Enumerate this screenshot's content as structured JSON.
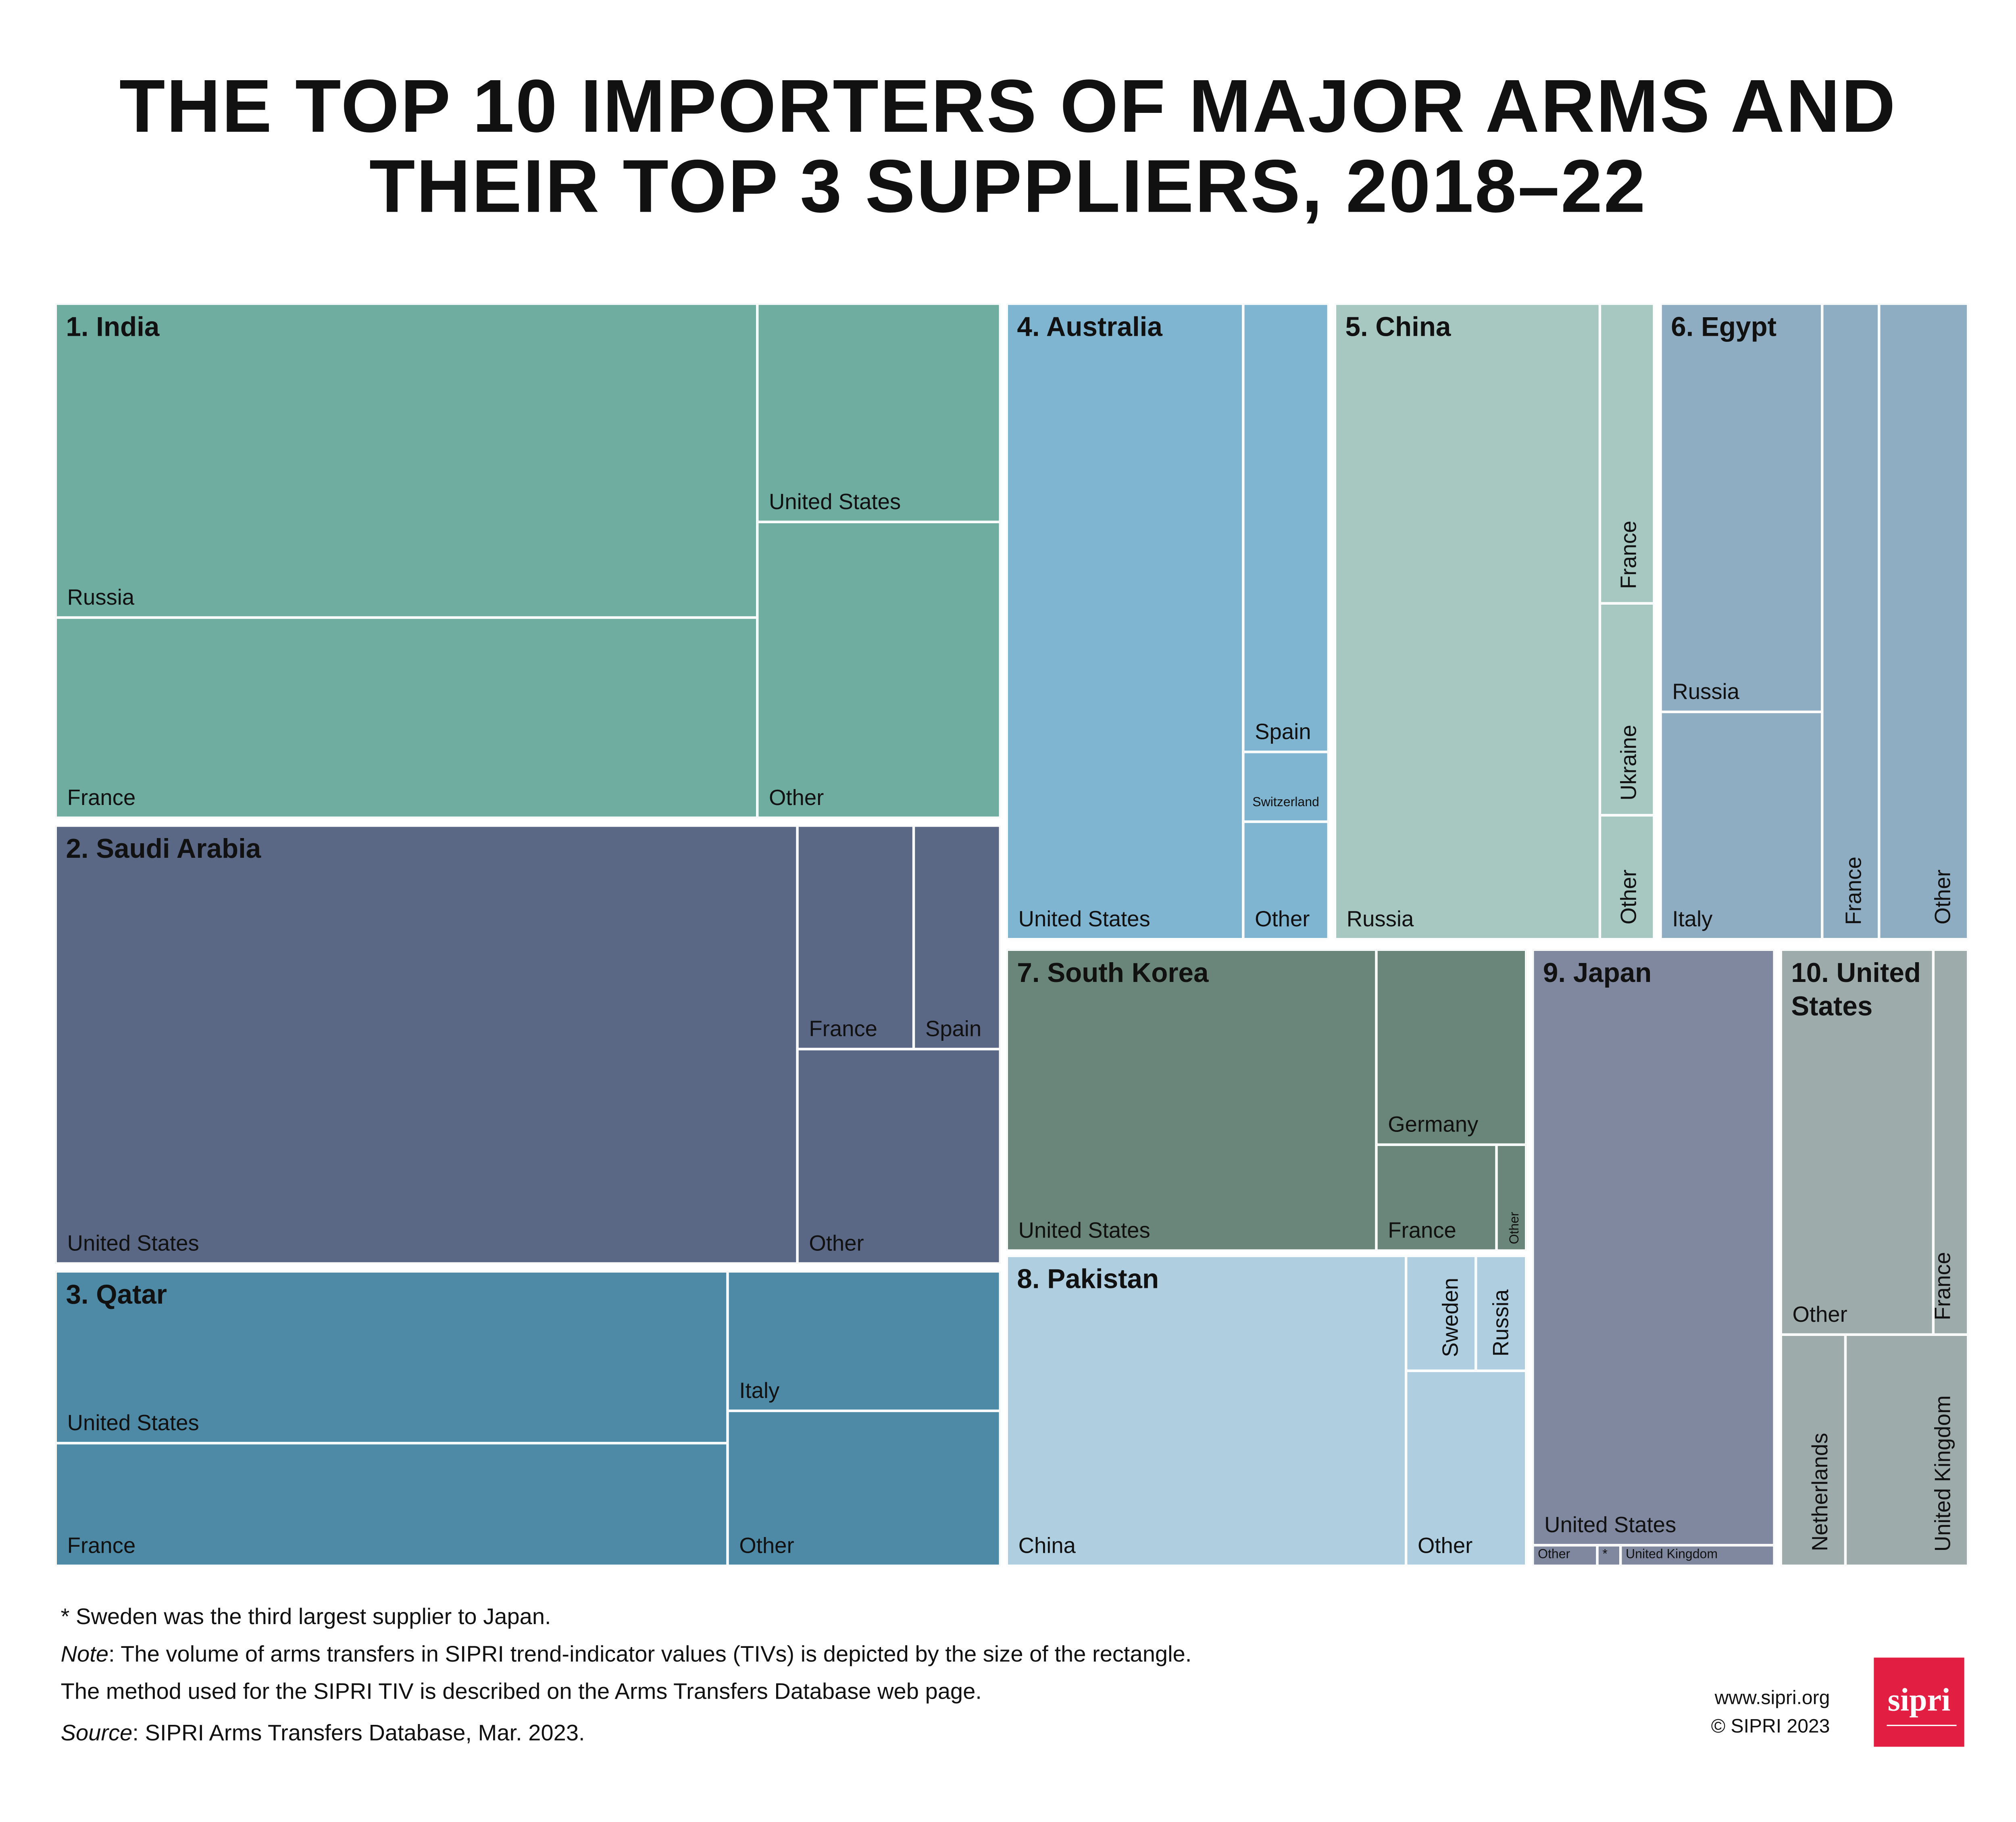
{
  "chart_data": {
    "type": "treemap",
    "title_line1": "THE TOP 10 IMPORTERS OF MAJOR ARMS AND",
    "title_line2": "THEIR TOP 3 SUPPLIERS, 2018–22",
    "countries": [
      {
        "label": "1. India",
        "color": "#6fada1",
        "suppliers": [
          "Russia",
          "France",
          "United States",
          "Other"
        ]
      },
      {
        "label": "2. Saudi Arabia",
        "color": "#5a6785",
        "suppliers": [
          "United States",
          "France",
          "Spain",
          "Other"
        ]
      },
      {
        "label": "3. Qatar",
        "color": "#4e8aa6",
        "suppliers": [
          "United States",
          "France",
          "Italy",
          "Other"
        ]
      },
      {
        "label": "4. Australia",
        "color": "#7fb5d1",
        "suppliers": [
          "United States",
          "Spain",
          "Switzerland",
          "Other"
        ]
      },
      {
        "label": "5. China",
        "color": "#a6c8c0",
        "suppliers": [
          "Russia",
          "France",
          "Ukraine",
          "Other"
        ]
      },
      {
        "label": "6. Egypt",
        "color": "#8fadc2",
        "suppliers": [
          "Russia",
          "Italy",
          "France",
          "Other"
        ]
      },
      {
        "label": "7. South Korea",
        "color": "#6a8579",
        "suppliers": [
          "United States",
          "Germany",
          "France",
          "Other"
        ]
      },
      {
        "label": "8. Pakistan",
        "color": "#afcfe1",
        "suppliers": [
          "China",
          "Sweden",
          "Russia",
          "Other"
        ]
      },
      {
        "label": "9. Japan",
        "color": "#8088a0",
        "suppliers": [
          "United States",
          "Other",
          "*",
          "United Kingdom"
        ]
      },
      {
        "label": "10. United States",
        "color": "#9dabaa",
        "suppliers": [
          "Other",
          "France",
          "Netherlands",
          "United Kingdom"
        ]
      }
    ]
  },
  "footer": {
    "asterisk_note": "* Sweden was the third largest supplier to Japan.",
    "note_label": "Note",
    "note_line1": ": The volume of arms transfers in SIPRI trend-indicator values (TIVs) is depicted by the size of the rectangle.",
    "note_line2": "The method used for the SIPRI TIV is described on the Arms Transfers Database web page.",
    "source_label": "Source",
    "source_text": ": SIPRI Arms Transfers Database, Mar. 2023.",
    "website": "www.sipri.org",
    "copyright": "© SIPRI 2023",
    "logo_text": "sipri",
    "logo_color": "#e31e43"
  }
}
